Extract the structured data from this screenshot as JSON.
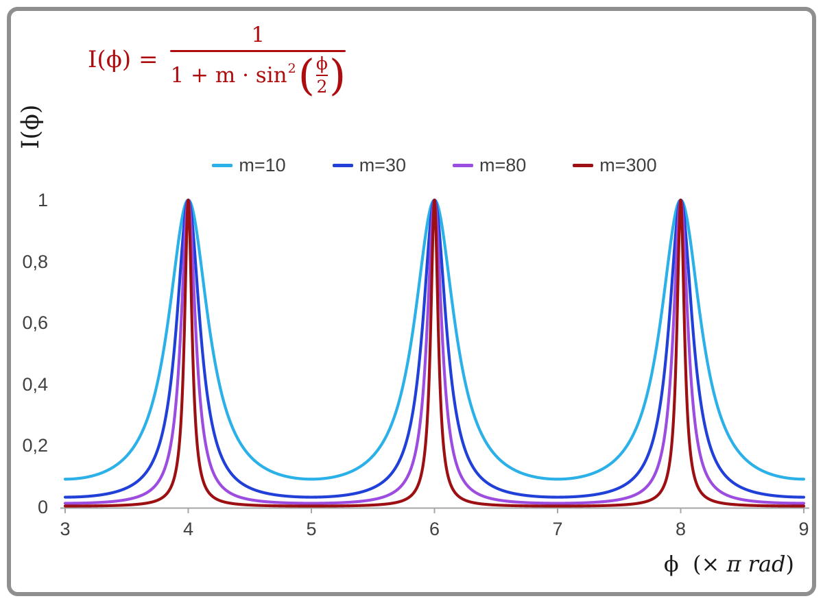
{
  "frame": {
    "border_color": "#8f8f8f"
  },
  "formula": {
    "color": "#ad0d0e",
    "lhs": "I(ϕ) =",
    "numerator": "1",
    "den_prefix": "1 + m · sin",
    "den_sup": "2",
    "open_paren": "(",
    "inner_numerator": "ϕ",
    "inner_denominator": "2",
    "close_paren": ")"
  },
  "axes": {
    "y_label": "I(ϕ)",
    "x_label": {
      "phi": "ϕ",
      "open": "  (× ",
      "pi_rad": "π rad",
      "close": ")"
    },
    "axis_line_color": "#a6a6a6",
    "tick_text_color": "#404040"
  },
  "chart_data": {
    "type": "line",
    "title": "",
    "function": "I(phi) = 1 / (1 + m * sin^2(phi/2))",
    "x_unit": "pi rad",
    "x_range": [
      3,
      9
    ],
    "y_range": [
      0,
      1
    ],
    "x_tick_values": [
      3,
      4,
      5,
      6,
      7,
      8,
      9
    ],
    "x_tick_labels": [
      "3",
      "4",
      "5",
      "6",
      "7",
      "8",
      "9"
    ],
    "y_tick_values": [
      0,
      0.2,
      0.4,
      0.6,
      0.8,
      1
    ],
    "y_tick_labels": [
      "0",
      "0,2",
      "0,4",
      "0,6",
      "0,8",
      "1"
    ],
    "peaks_at_x": [
      4,
      6,
      8
    ],
    "peak_value": 1,
    "grid": false,
    "legend_position": "top-center",
    "series": [
      {
        "name": "m10",
        "label": "m=10",
        "m": 10,
        "color": "#2bb0e8"
      },
      {
        "name": "m30",
        "label": "m=30",
        "m": 30,
        "color": "#2040d8"
      },
      {
        "name": "m80",
        "label": "m=80",
        "m": 80,
        "color": "#9d4ce0"
      },
      {
        "name": "m300",
        "label": "m=300",
        "m": 300,
        "color": "#9c1013"
      }
    ]
  }
}
